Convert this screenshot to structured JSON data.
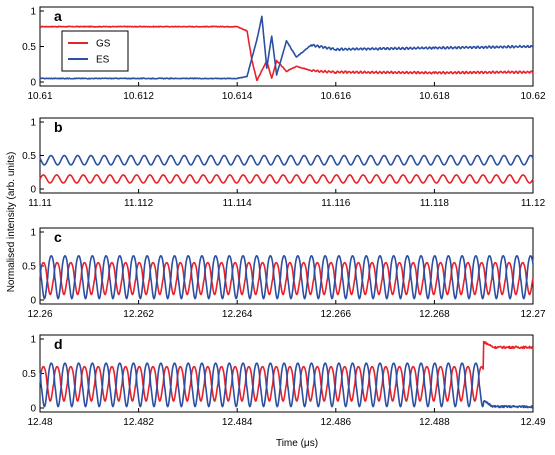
{
  "figure": {
    "ylabel": "Normalised intensity (arb. units)",
    "xlabel": "Time (μs)"
  },
  "colors": {
    "GS": "#e8222a",
    "ES": "#2b4fa3",
    "axis": "#000000"
  },
  "chart_data": [
    {
      "type": "line",
      "panel": "a",
      "xlim": [
        10.61,
        10.62
      ],
      "ylim": [
        0,
        1
      ],
      "xticks": [
        "10.61",
        "10.612",
        "10.614",
        "10.616",
        "10.618",
        "10.62"
      ],
      "yticks": [
        "0",
        "0.5",
        "1"
      ],
      "legend": {
        "position": "upper-left",
        "entries": [
          "GS",
          "ES"
        ]
      },
      "series": [
        {
          "name": "GS",
          "x": [
            10.61,
            10.614,
            10.6142,
            10.6143,
            10.6144,
            10.6146,
            10.6147,
            10.6148,
            10.615,
            10.6152,
            10.6155,
            10.616,
            10.618,
            10.62
          ],
          "y": [
            0.78,
            0.78,
            0.72,
            0.3,
            0.02,
            0.3,
            0.05,
            0.3,
            0.15,
            0.22,
            0.16,
            0.14,
            0.13,
            0.14
          ]
        },
        {
          "name": "ES",
          "x": [
            10.61,
            10.614,
            10.6142,
            10.6144,
            10.6145,
            10.6146,
            10.6147,
            10.6148,
            10.615,
            10.6152,
            10.6155,
            10.616,
            10.618,
            10.62
          ],
          "y": [
            0.05,
            0.05,
            0.08,
            0.6,
            0.92,
            0.2,
            0.65,
            0.1,
            0.58,
            0.35,
            0.52,
            0.46,
            0.48,
            0.5
          ]
        }
      ]
    },
    {
      "type": "line",
      "panel": "b",
      "xlim": [
        11.11,
        11.12
      ],
      "ylim": [
        0,
        1
      ],
      "xticks": [
        "11.11",
        "11.112",
        "11.114",
        "11.116",
        "11.118",
        "11.12"
      ],
      "yticks": [
        "0",
        "0.5",
        "1"
      ],
      "series": [
        {
          "name": "GS",
          "pattern": "oscillation",
          "mean": 0.15,
          "amplitude": 0.06,
          "cycles": 37
        },
        {
          "name": "ES",
          "pattern": "oscillation",
          "mean": 0.43,
          "amplitude": 0.07,
          "cycles": 37
        }
      ]
    },
    {
      "type": "line",
      "panel": "c",
      "xlim": [
        12.26,
        12.27
      ],
      "ylim": [
        0,
        1
      ],
      "xticks": [
        "12.26",
        "12.262",
        "12.264",
        "12.266",
        "12.268",
        "12.27"
      ],
      "yticks": [
        "0",
        "0.5",
        "1"
      ],
      "series": [
        {
          "name": "GS",
          "pattern": "oscillation",
          "min": 0.08,
          "max": 0.55,
          "cycles": 36
        },
        {
          "name": "ES",
          "pattern": "oscillation",
          "min": 0.02,
          "max": 0.65,
          "cycles": 36
        }
      ]
    },
    {
      "type": "line",
      "panel": "d",
      "xlim": [
        12.48,
        12.49
      ],
      "ylim": [
        0,
        1
      ],
      "xticks": [
        "12.48",
        "12.482",
        "12.484",
        "12.486",
        "12.488",
        "12.49"
      ],
      "yticks": [
        "0",
        "0.5",
        "1"
      ],
      "series": [
        {
          "name": "GS",
          "pattern": "oscillation then jump",
          "min": 0.1,
          "max": 0.6,
          "switch_time": 12.489,
          "after": 0.88
        },
        {
          "name": "ES",
          "pattern": "oscillation then drop",
          "min": 0.02,
          "max": 0.65,
          "switch_time": 12.489,
          "after": 0.02
        }
      ]
    }
  ]
}
